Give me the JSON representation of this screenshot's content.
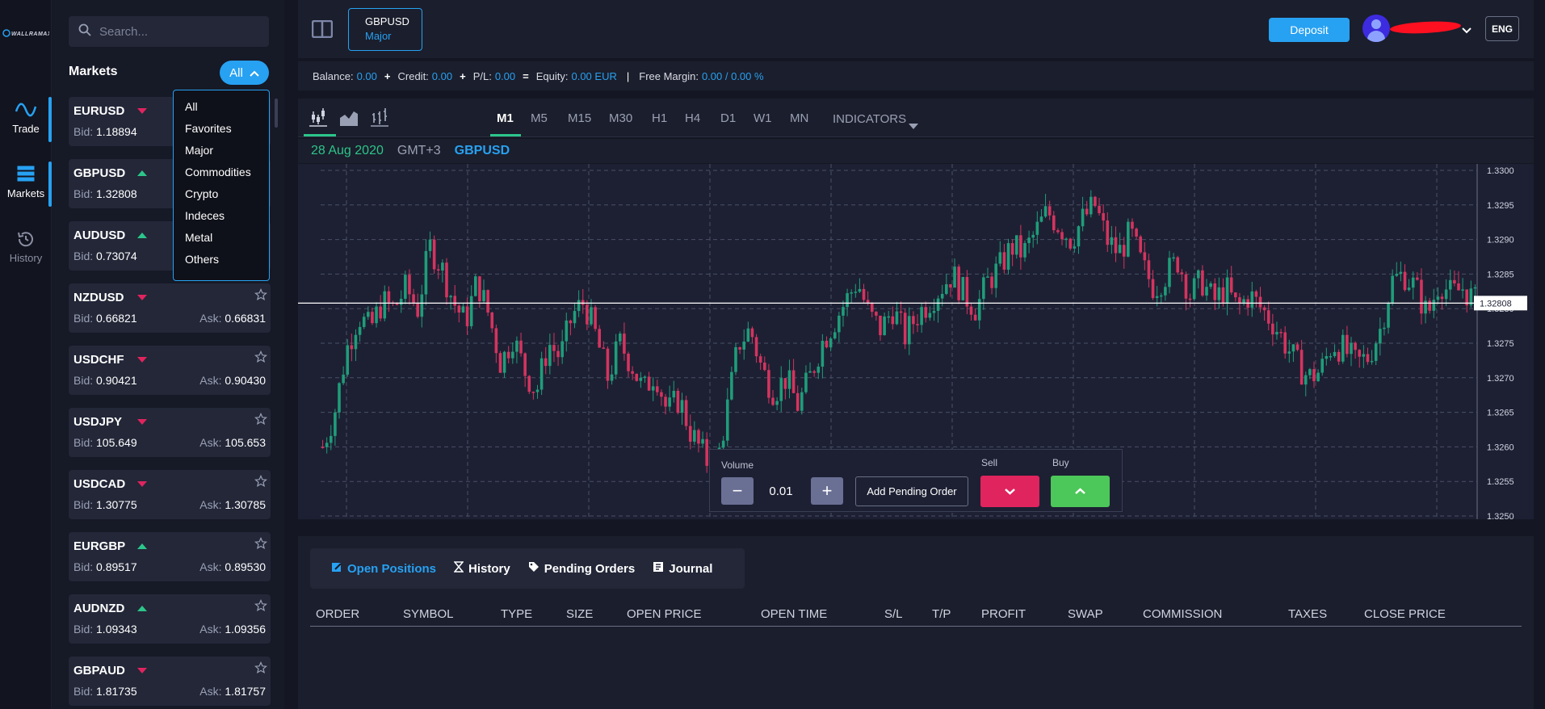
{
  "brand": {
    "logo_text": "WALLRAMAX"
  },
  "rail": {
    "items": [
      {
        "label": "Trade",
        "icon": "wave-icon"
      },
      {
        "label": "Markets",
        "icon": "grid-icon"
      },
      {
        "label": "History",
        "icon": "history-icon"
      }
    ]
  },
  "sidebar": {
    "search_placeholder": "Search...",
    "title": "Markets",
    "filter_label": "All",
    "filter_options": [
      "All",
      "Favorites",
      "Major",
      "Commodities",
      "Crypto",
      "Indeces",
      "Metal",
      "Others"
    ],
    "markets": [
      {
        "symbol": "EURUSD",
        "dir": "down",
        "bid_label": "Bid:",
        "bid": "1.18894",
        "ask_label": "",
        "ask": ""
      },
      {
        "symbol": "GBPUSD",
        "dir": "up",
        "bid_label": "Bid:",
        "bid": "1.32808",
        "ask_label": "",
        "ask": ""
      },
      {
        "symbol": "AUDUSD",
        "dir": "up",
        "bid_label": "Bid:",
        "bid": "0.73074",
        "ask_label": "",
        "ask": ""
      },
      {
        "symbol": "NZDUSD",
        "dir": "down",
        "bid_label": "Bid:",
        "bid": "0.66821",
        "ask_label": "Ask:",
        "ask": "0.66831"
      },
      {
        "symbol": "USDCHF",
        "dir": "down",
        "bid_label": "Bid:",
        "bid": "0.90421",
        "ask_label": "Ask:",
        "ask": "0.90430"
      },
      {
        "symbol": "USDJPY",
        "dir": "down",
        "bid_label": "Bid:",
        "bid": "105.649",
        "ask_label": "Ask:",
        "ask": "105.653"
      },
      {
        "symbol": "USDCAD",
        "dir": "down",
        "bid_label": "Bid:",
        "bid": "1.30775",
        "ask_label": "Ask:",
        "ask": "1.30785"
      },
      {
        "symbol": "EURGBP",
        "dir": "up",
        "bid_label": "Bid:",
        "bid": "0.89517",
        "ask_label": "Ask:",
        "ask": "0.89530"
      },
      {
        "symbol": "AUDNZD",
        "dir": "up",
        "bid_label": "Bid:",
        "bid": "1.09343",
        "ask_label": "Ask:",
        "ask": "1.09356"
      },
      {
        "symbol": "GBPAUD",
        "dir": "down",
        "bid_label": "Bid:",
        "bid": "1.81735",
        "ask_label": "Ask:",
        "ask": "1.81757"
      }
    ]
  },
  "topbar": {
    "symbol_tab": {
      "symbol": "GBPUSD",
      "group": "Major"
    },
    "deposit_label": "Deposit",
    "language": "ENG"
  },
  "balance": {
    "balance_label": "Balance:",
    "balance": "0.00",
    "credit_label": "Credit:",
    "credit": "0.00",
    "pl_label": "P/L:",
    "pl": "0.00",
    "equity_label": "Equity:",
    "equity": "0.00 EUR",
    "free_margin_label": "Free Margin:",
    "free_margin": "0.00 / 0.00 %",
    "plus": "+",
    "equals": "=",
    "pipe": "|"
  },
  "chart_toolbar": {
    "chart_types": [
      "candlestick-icon",
      "area-icon",
      "bars-icon"
    ],
    "timeframes": [
      "M1",
      "M5",
      "M15",
      "M30",
      "H1",
      "H4",
      "D1",
      "W1",
      "MN"
    ],
    "active_timeframe": "M1",
    "indicators_label": "INDICATORS"
  },
  "chart_info": {
    "date": "28 Aug 2020",
    "timezone": "GMT+3",
    "symbol": "GBPUSD"
  },
  "chart_data": {
    "type": "candlestick",
    "y_ticks": [
      "1.3300",
      "1.3295",
      "1.3290",
      "1.3285",
      "1.3280",
      "1.3275",
      "1.3270",
      "1.3265",
      "1.3260",
      "1.3255",
      "1.3250"
    ],
    "ylim": [
      1.325,
      1.33
    ],
    "current_price": "1.32808",
    "colors": {
      "up": "#1f9d7a",
      "down": "#d4345f",
      "grid": "#4a4f66",
      "price_line": "#ffffff"
    },
    "close_path": [
      1.326,
      1.3265,
      1.3274,
      1.3279,
      1.3277,
      1.3281,
      1.328,
      1.3283,
      1.328,
      1.3289,
      1.3286,
      1.3281,
      1.3278,
      1.3284,
      1.3279,
      1.3272,
      1.3276,
      1.3271,
      1.3268,
      1.3275,
      1.3273,
      1.3279,
      1.3281,
      1.3276,
      1.327,
      1.3275,
      1.3272,
      1.3268,
      1.3271,
      1.3265,
      1.3267,
      1.3262,
      1.3259,
      1.3256,
      1.3265,
      1.3275,
      1.3277,
      1.3271,
      1.3268,
      1.327,
      1.3266,
      1.327,
      1.3275,
      1.3278,
      1.3281,
      1.3284,
      1.3279,
      1.3277,
      1.328,
      1.3276,
      1.3279,
      1.3281,
      1.3283,
      1.3285,
      1.3282,
      1.328,
      1.3284,
      1.3286,
      1.3289,
      1.3288,
      1.3291,
      1.3294,
      1.3292,
      1.329,
      1.3293,
      1.3295,
      1.329,
      1.3288,
      1.3291,
      1.3286,
      1.3283,
      1.3285,
      1.3287,
      1.3282,
      1.3284,
      1.3281,
      1.3283,
      1.328,
      1.3282,
      1.328,
      1.3278,
      1.3275,
      1.3272,
      1.327,
      1.3271,
      1.3275,
      1.3274,
      1.3272,
      1.3273,
      1.3277,
      1.3284,
      1.3285,
      1.3283,
      1.3279,
      1.3284,
      1.3282,
      1.3283,
      1.3281
    ]
  },
  "order_panel": {
    "volume_label": "Volume",
    "volume": "0.01",
    "minus": "−",
    "plus": "+",
    "pending_label": "Add Pending Order",
    "sell_label": "Sell",
    "buy_label": "Buy"
  },
  "positions": {
    "tabs": [
      {
        "label": "Open Positions",
        "icon": "edit-icon",
        "active": true
      },
      {
        "label": "History",
        "icon": "hourglass-icon",
        "active": false
      },
      {
        "label": "Pending Orders",
        "icon": "tag-icon",
        "active": false
      },
      {
        "label": "Journal",
        "icon": "journal-icon",
        "active": false
      }
    ],
    "columns": [
      "ORDER",
      "SYMBOL",
      "TYPE",
      "SIZE",
      "OPEN PRICE",
      "OPEN TIME",
      "S/L",
      "T/P",
      "PROFIT",
      "SWAP",
      "COMMISSION",
      "TAXES",
      "CLOSE PRICE"
    ]
  }
}
